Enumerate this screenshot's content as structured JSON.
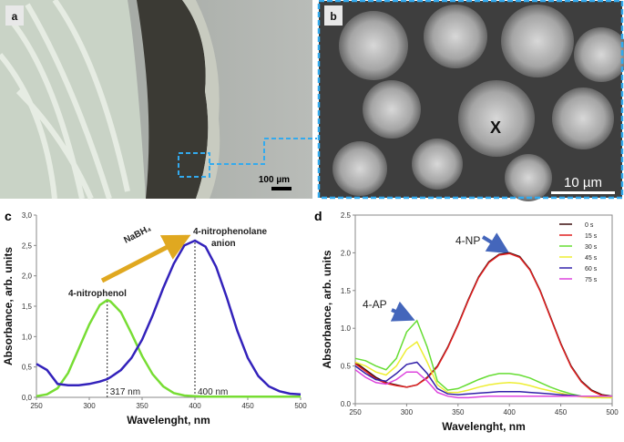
{
  "panels": {
    "a": {
      "label": "a",
      "scale_bar": "100 µm"
    },
    "b": {
      "label": "b",
      "scale_bar": "10 µm",
      "marker": "X"
    }
  },
  "chart_data": [
    {
      "type": "line",
      "panel_label": "c",
      "x_label": "Wavelenght, nm",
      "y_label": "Absorbance, arb. units",
      "x": [
        250,
        260,
        270,
        280,
        290,
        300,
        310,
        317,
        320,
        330,
        340,
        350,
        360,
        370,
        380,
        390,
        400,
        410,
        420,
        430,
        440,
        450,
        460,
        470,
        480,
        490,
        500
      ],
      "series": [
        {
          "color": "#77dd33",
          "values": [
            0.02,
            0.05,
            0.15,
            0.4,
            0.8,
            1.2,
            1.52,
            1.6,
            1.58,
            1.4,
            1.05,
            0.68,
            0.38,
            0.18,
            0.07,
            0.03,
            0.02,
            0.01,
            0.01,
            0.01,
            0.01,
            0.01,
            0.01,
            0.01,
            0.01,
            0.01,
            0.01
          ]
        },
        {
          "color": "#3322bb",
          "values": [
            0.55,
            0.45,
            0.22,
            0.2,
            0.2,
            0.22,
            0.26,
            0.3,
            0.33,
            0.45,
            0.65,
            0.95,
            1.35,
            1.8,
            2.2,
            2.5,
            2.58,
            2.48,
            2.15,
            1.65,
            1.1,
            0.65,
            0.35,
            0.18,
            0.1,
            0.06,
            0.05
          ]
        }
      ],
      "xlim": [
        250,
        500
      ],
      "xticks": [
        250,
        300,
        350,
        400,
        450,
        500
      ],
      "ylim": [
        0,
        3
      ],
      "yticks": [
        {
          "value": 0,
          "label": "0,0"
        },
        {
          "value": 0.5,
          "label": "0,5"
        },
        {
          "value": 1,
          "label": "1,0"
        },
        {
          "value": 1.5,
          "label": "1,5"
        },
        {
          "value": 2,
          "label": "2,0"
        },
        {
          "value": 2.5,
          "label": "2,5"
        },
        {
          "value": 3,
          "label": "3,0"
        }
      ],
      "vlines": [
        {
          "x": 317,
          "label": "317 nm"
        },
        {
          "x": 400,
          "label": "400 nm"
        }
      ],
      "annotations": [
        {
          "lines": [
            "4-nitrophenol"
          ]
        },
        {
          "lines": [
            "4-nitrophenolane",
            "anion"
          ]
        },
        {
          "lines": [
            "NaBH₄"
          ]
        }
      ]
    },
    {
      "type": "line",
      "panel_label": "d",
      "x_label": "Wavelenght, nm",
      "y_label": "Absorbance, arb. units",
      "x": [
        250,
        260,
        270,
        280,
        290,
        300,
        310,
        320,
        330,
        340,
        350,
        360,
        370,
        380,
        390,
        400,
        410,
        420,
        430,
        440,
        450,
        460,
        470,
        480,
        490,
        500
      ],
      "series": [
        {
          "name": "0 s",
          "color": "#3a0c0c",
          "values": [
            0.55,
            0.45,
            0.35,
            0.28,
            0.25,
            0.22,
            0.25,
            0.35,
            0.5,
            0.75,
            1.05,
            1.38,
            1.68,
            1.88,
            1.98,
            2.0,
            1.95,
            1.78,
            1.5,
            1.15,
            0.8,
            0.5,
            0.3,
            0.18,
            0.12,
            0.1
          ]
        },
        {
          "name": "15 s",
          "color": "#e02020",
          "values": [
            0.53,
            0.43,
            0.33,
            0.27,
            0.24,
            0.22,
            0.25,
            0.34,
            0.49,
            0.74,
            1.04,
            1.37,
            1.67,
            1.87,
            1.97,
            1.99,
            1.94,
            1.77,
            1.49,
            1.14,
            0.79,
            0.49,
            0.29,
            0.17,
            0.11,
            0.09
          ]
        },
        {
          "name": "30 s",
          "color": "#66dd33",
          "values": [
            0.6,
            0.57,
            0.5,
            0.45,
            0.6,
            0.95,
            1.1,
            0.75,
            0.3,
            0.18,
            0.2,
            0.26,
            0.32,
            0.37,
            0.4,
            0.4,
            0.38,
            0.34,
            0.28,
            0.22,
            0.17,
            0.13,
            0.1,
            0.09,
            0.08,
            0.08
          ]
        },
        {
          "name": "45 s",
          "color": "#eeee33",
          "values": [
            0.55,
            0.5,
            0.42,
            0.38,
            0.5,
            0.72,
            0.82,
            0.55,
            0.25,
            0.15,
            0.15,
            0.18,
            0.22,
            0.25,
            0.27,
            0.28,
            0.27,
            0.24,
            0.2,
            0.17,
            0.14,
            0.11,
            0.09,
            0.08,
            0.08,
            0.08
          ]
        },
        {
          "name": "60 s",
          "color": "#3322aa",
          "values": [
            0.5,
            0.4,
            0.32,
            0.3,
            0.4,
            0.52,
            0.55,
            0.4,
            0.2,
            0.13,
            0.12,
            0.13,
            0.14,
            0.15,
            0.16,
            0.16,
            0.16,
            0.15,
            0.14,
            0.13,
            0.12,
            0.11,
            0.1,
            0.1,
            0.1,
            0.1
          ]
        },
        {
          "name": "75 s",
          "color": "#dd44dd",
          "values": [
            0.45,
            0.35,
            0.28,
            0.26,
            0.32,
            0.42,
            0.42,
            0.3,
            0.15,
            0.1,
            0.08,
            0.08,
            0.09,
            0.1,
            0.1,
            0.1,
            0.1,
            0.1,
            0.1,
            0.1,
            0.1,
            0.1,
            0.1,
            0.1,
            0.1,
            0.1
          ]
        }
      ],
      "xlim": [
        250,
        500
      ],
      "xticks": [
        250,
        300,
        350,
        400,
        450,
        500
      ],
      "ylim": [
        0,
        2.5
      ],
      "yticks": [
        {
          "value": 0,
          "label": "0.0"
        },
        0.5,
        {
          "value": 1,
          "label": "1.0"
        },
        1.5,
        {
          "value": 2,
          "label": "2.0"
        },
        2.5
      ],
      "legend": "upper right",
      "annotations": [
        {
          "lines": [
            "4-NP"
          ]
        },
        {
          "lines": [
            "4-AP"
          ]
        }
      ]
    }
  ]
}
